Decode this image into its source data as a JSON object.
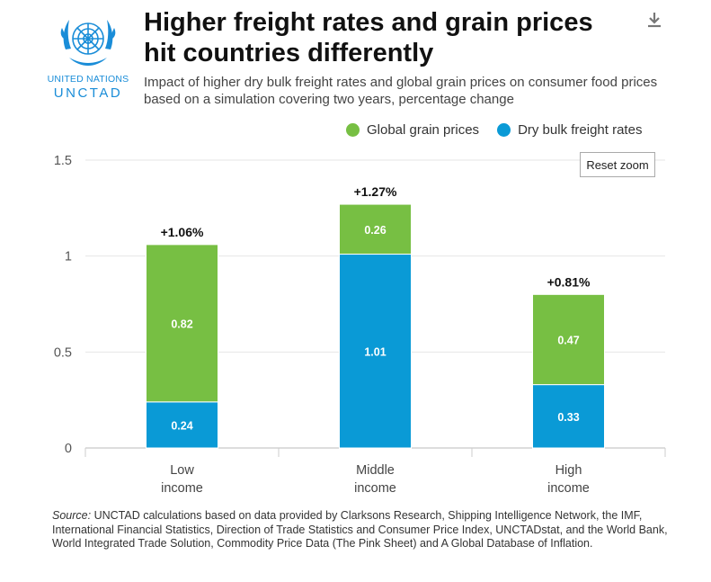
{
  "logo": {
    "line1": "UNITED NATIONS",
    "line2": "UNCTAD",
    "icon": "un-emblem-icon"
  },
  "title": "Higher freight rates and grain prices hit countries differently",
  "subtitle": "Impact of higher dry bulk freight rates and global grain prices on consumer food prices based on a simulation covering two years, percentage change",
  "toolbar": {
    "download_icon": "download-icon",
    "reset_zoom_label": "Reset zoom"
  },
  "colors": {
    "grain": "#77bf43",
    "freight": "#0a9ad6",
    "grid": "#e6e6e6"
  },
  "chart_data": {
    "type": "bar",
    "stacked": true,
    "categories": [
      "Low income",
      "Middle income",
      "High income"
    ],
    "series": [
      {
        "name": "Dry bulk freight rates",
        "values": [
          0.24,
          1.01,
          0.33
        ],
        "color": "#0a9ad6"
      },
      {
        "name": "Global grain prices",
        "values": [
          0.82,
          0.26,
          0.47
        ],
        "color": "#77bf43"
      }
    ],
    "segment_labels": {
      "Dry bulk freight rates": [
        "0.24",
        "1.01",
        "0.33"
      ],
      "Global grain prices": [
        "0.82",
        "0.26",
        "0.47"
      ]
    },
    "totals": [
      1.06,
      1.27,
      0.81
    ],
    "total_labels": [
      "+1.06%",
      "+1.27%",
      "+0.81%"
    ],
    "ylim": [
      0,
      1.5
    ],
    "yticks": [
      0,
      0.5,
      1,
      1.5
    ],
    "ytick_labels": [
      "0",
      "0.5",
      "1",
      "1.5"
    ],
    "legend_order": [
      "Global grain prices",
      "Dry bulk freight rates"
    ],
    "legend_position": "top-right",
    "grid": true
  },
  "source": {
    "prefix": "Source:",
    "text": " UNCTAD calculations based on data provided by Clarksons Research, Shipping Intelligence Network, the IMF, International Financial Statistics, Direction of Trade Statistics and Consumer Price Index, UNCTADstat, and the World Bank, World Integrated Trade Solution, Commodity Price Data (The Pink Sheet) and A Global Database of Inflation."
  }
}
